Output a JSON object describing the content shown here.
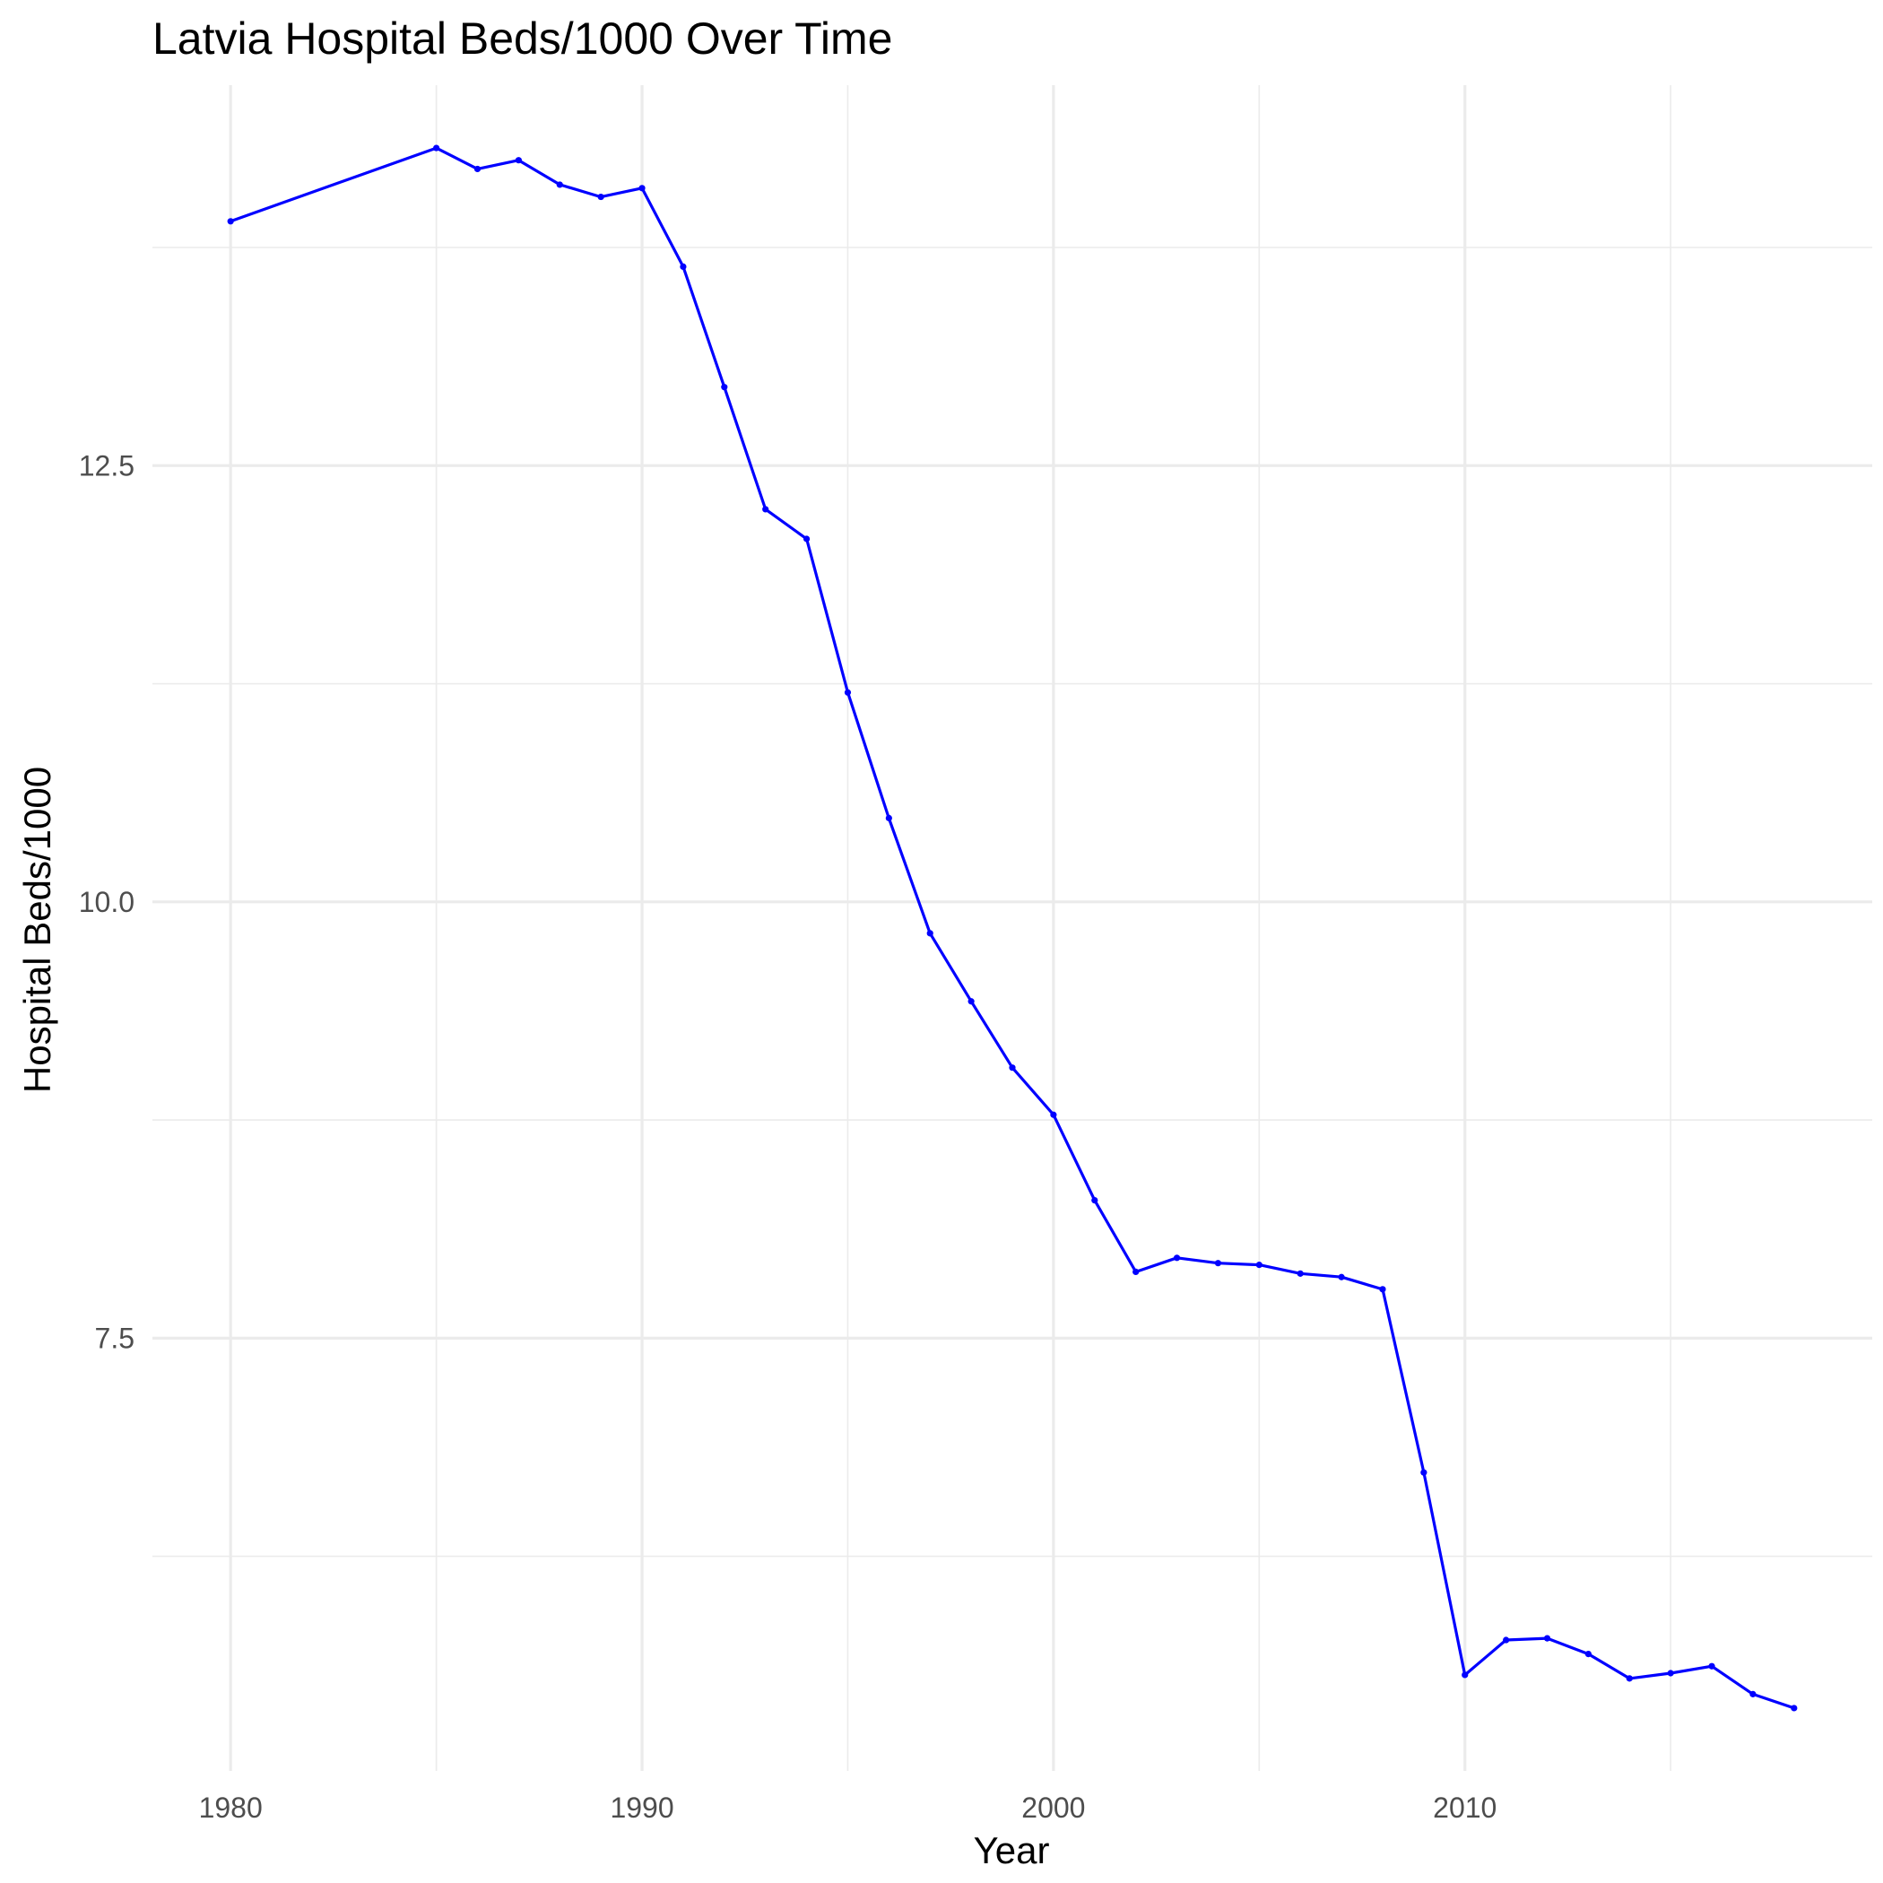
{
  "chart_data": {
    "type": "line",
    "title": "Latvia Hospital Beds/1000 Over Time",
    "xlabel": "Year",
    "ylabel": "Hospital Beds/1000",
    "xlim": [
      1978.1,
      2019.9
    ],
    "ylim": [
      5.02,
      14.68
    ],
    "x_ticks": [
      1980,
      1990,
      2000,
      2010
    ],
    "x_tick_labels": [
      "1980",
      "1990",
      "2000",
      "2010"
    ],
    "x_minor_ticks": [
      1985,
      1995,
      2005,
      2015
    ],
    "y_ticks": [
      7.5,
      10.0,
      12.5
    ],
    "y_tick_labels": [
      "7.5",
      "10.0",
      "12.5"
    ],
    "y_minor_ticks": [
      6.25,
      8.75,
      11.25,
      13.75
    ],
    "grid": true,
    "legend": "none",
    "series": [
      {
        "color": "#0000ff",
        "x": [
          1980,
          1985,
          1986,
          1987,
          1988,
          1989,
          1990,
          1991,
          1992,
          1993,
          1994,
          1995,
          1996,
          1997,
          1998,
          1999,
          2000,
          2001,
          2002,
          2003,
          2004,
          2005,
          2006,
          2007,
          2008,
          2009,
          2010,
          2011,
          2012,
          2013,
          2014,
          2015,
          2016,
          2017,
          2018
        ],
        "y": [
          13.9,
          14.32,
          14.2,
          14.25,
          14.11,
          14.04,
          14.09,
          13.64,
          12.95,
          12.25,
          12.08,
          11.2,
          10.48,
          9.82,
          9.43,
          9.05,
          8.78,
          8.29,
          7.88,
          7.96,
          7.93,
          7.92,
          7.87,
          7.85,
          7.78,
          6.73,
          5.57,
          5.77,
          5.78,
          5.69,
          5.55,
          5.58,
          5.62,
          5.46,
          5.38
        ]
      }
    ]
  }
}
